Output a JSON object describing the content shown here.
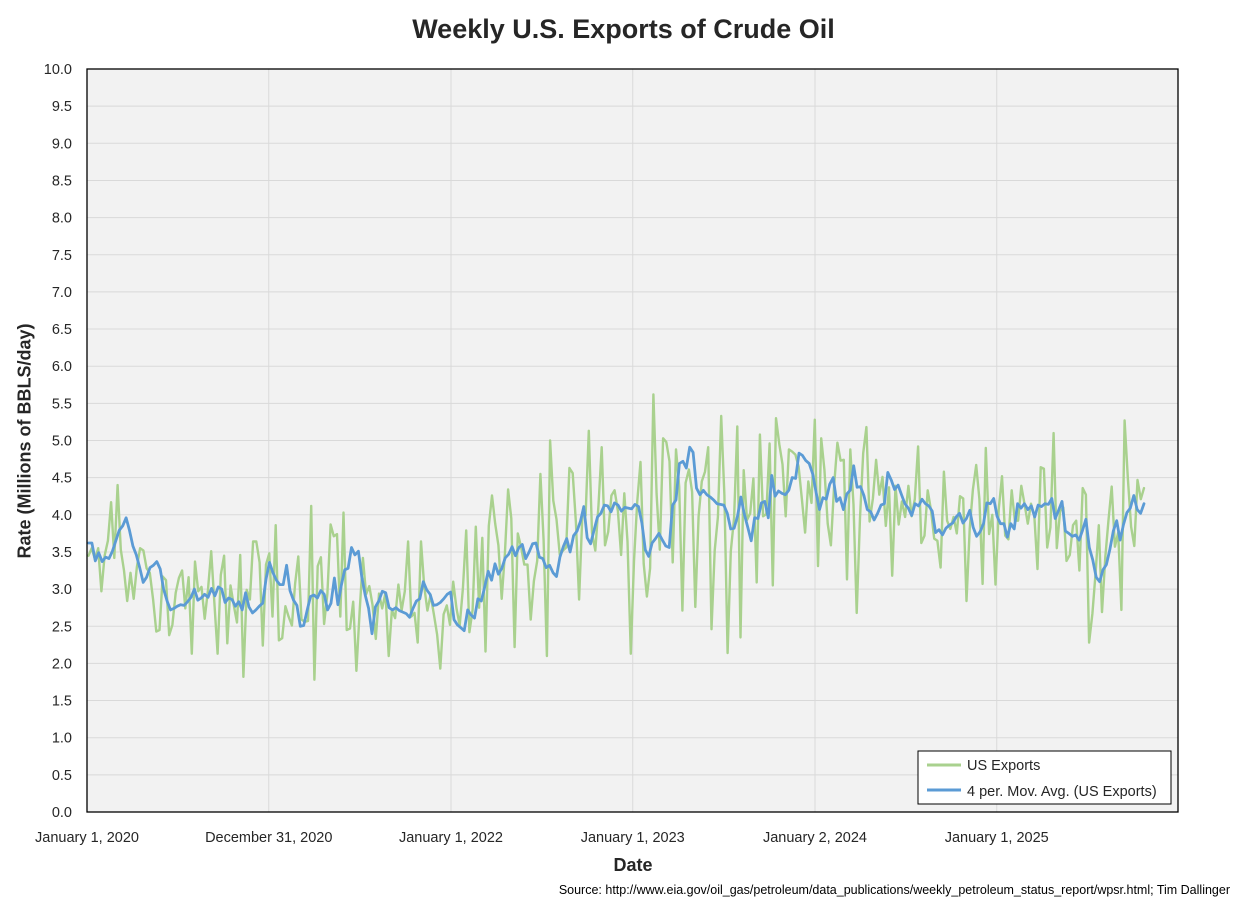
{
  "chart_data": {
    "type": "line",
    "title": "Weekly U.S. Exports of Crude Oil",
    "xlabel": "Date",
    "ylabel": "Rate (Millions of BBLS/day)",
    "source": "Source: http://www.eia.gov/oil_gas/petroleum/data_publications/weekly_petroleum_status_report/wpsr.html; Tim Dallinger",
    "ylim": [
      0,
      10
    ],
    "y_ticks": [
      "0.0",
      "0.5",
      "1.0",
      "1.5",
      "2.0",
      "2.5",
      "3.0",
      "3.5",
      "4.0",
      "4.5",
      "5.0",
      "5.5",
      "6.0",
      "6.5",
      "7.0",
      "7.5",
      "8.0",
      "8.5",
      "9.0",
      "9.5",
      "10.0"
    ],
    "x_ticks": [
      "January 1, 2020",
      "December 31, 2020",
      "January 1, 2022",
      "January 1, 2023",
      "January 2, 2024",
      "January 1, 2025"
    ],
    "x_start": "January 1, 2020",
    "x_end": "December 31, 2025",
    "grid": true,
    "legend_position": "bottom-right",
    "series": [
      {
        "name": "US Exports",
        "color": "#a9d18e",
        "values": [
          3.45,
          3.55,
          3.4,
          3.55,
          2.97,
          3.45,
          3.65,
          4.17,
          3.42,
          4.4,
          3.53,
          3.25,
          2.84,
          3.22,
          2.87,
          3.3,
          3.55,
          3.52,
          3.28,
          3.22,
          2.86,
          2.43,
          2.45,
          3.17,
          3.12,
          2.38,
          2.52,
          2.95,
          3.15,
          3.25,
          2.74,
          3.16,
          2.13,
          3.37,
          2.97,
          3.03,
          2.6,
          2.98,
          3.51,
          2.81,
          2.13,
          3.19,
          3.45,
          2.27,
          3.05,
          2.78,
          2.55,
          3.46,
          1.82,
          2.99,
          2.86,
          3.64,
          3.64,
          3.36,
          2.24,
          3.33,
          3.48,
          2.63,
          3.86,
          2.31,
          2.34,
          2.77,
          2.63,
          2.51,
          3.07,
          3.44,
          2.59,
          2.56,
          2.57,
          4.12,
          1.78,
          3.31,
          3.43,
          2.53,
          2.94,
          3.87,
          3.71,
          3.74,
          2.63,
          4.03,
          2.45,
          2.47,
          2.83,
          1.9,
          2.69,
          3.42,
          2.93,
          3.04,
          2.79,
          2.33,
          2.94,
          2.74,
          2.95,
          2.1,
          2.72,
          2.61,
          3.06,
          2.71,
          2.97,
          3.64,
          2.63,
          2.68,
          2.28,
          3.64,
          3.04,
          2.71,
          2.92,
          2.66,
          2.39,
          1.93,
          2.66,
          2.78,
          2.52,
          3.1,
          2.74,
          2.51,
          3.01,
          3.79,
          2.42,
          2.72,
          3.84,
          2.75,
          3.69,
          2.16,
          3.85,
          4.26,
          3.88,
          3.59,
          2.87,
          3.48,
          4.34,
          3.95,
          2.22,
          3.75,
          3.57,
          3.33,
          3.33,
          2.59,
          3.11,
          3.38,
          4.55,
          3.66,
          2.1,
          5.0,
          4.19,
          3.94,
          3.46,
          3.52,
          3.56,
          4.63,
          4.56,
          3.9,
          2.86,
          4.02,
          3.99,
          5.13,
          3.76,
          3.52,
          4.13,
          4.91,
          3.59,
          3.77,
          4.26,
          4.33,
          4.05,
          3.46,
          4.29,
          3.64,
          2.13,
          3.38,
          4.17,
          4.71,
          3.34,
          2.9,
          3.28,
          5.62,
          4.28,
          3.53,
          5.03,
          4.98,
          4.72,
          3.36,
          4.88,
          4.38,
          2.71,
          4.43,
          4.61,
          4.31,
          2.76,
          3.98,
          4.45,
          4.58,
          4.91,
          2.46,
          3.52,
          3.97,
          5.33,
          4.26,
          2.14,
          3.51,
          3.96,
          5.19,
          2.35,
          4.6,
          3.93,
          4.02,
          4.49,
          3.09,
          5.08,
          3.98,
          4.01,
          4.96,
          3.05,
          5.3,
          4.95,
          4.68,
          3.98,
          4.88,
          4.85,
          4.81,
          4.65,
          4.21,
          3.76,
          4.45,
          4.16,
          5.28,
          3.31,
          5.03,
          4.61,
          3.88,
          3.59,
          4.39,
          4.97,
          4.73,
          4.74,
          3.13,
          4.88,
          4.14,
          2.68,
          3.96,
          4.83,
          5.18,
          3.91,
          4.22,
          4.74,
          4.27,
          4.51,
          3.85,
          4.37,
          3.18,
          4.39,
          3.87,
          4.18,
          3.97,
          4.39,
          3.98,
          4.21,
          4.92,
          3.62,
          3.72,
          4.33,
          4.06,
          3.68,
          3.65,
          3.29,
          4.58,
          3.92,
          3.81,
          3.97,
          3.75,
          4.25,
          4.22,
          2.84,
          3.81,
          4.34,
          4.67,
          4.21,
          3.07,
          4.9,
          3.74,
          4.0,
          3.06,
          4.07,
          4.52,
          3.72,
          3.67,
          4.33,
          3.92,
          3.92,
          4.39,
          4.14,
          3.88,
          4.15,
          3.99,
          3.27,
          4.64,
          4.62,
          3.56,
          3.83,
          5.1,
          3.55,
          4.05,
          4.1,
          3.38,
          3.46,
          3.86,
          3.92,
          3.25,
          4.36,
          4.27,
          2.28,
          2.67,
          3.22,
          3.86,
          2.69,
          3.43,
          3.93,
          4.38,
          3.57,
          3.76,
          2.72,
          5.27,
          4.48,
          3.84,
          3.58,
          4.47,
          4.21,
          4.36
        ]
      },
      {
        "name": "4 per. Mov. Avg. (US Exports)",
        "color": "#5b9bd5",
        "values": [
          3.62,
          3.62,
          3.38,
          3.49,
          3.37,
          3.43,
          3.41,
          3.51,
          3.65,
          3.79,
          3.85,
          3.96,
          3.79,
          3.58,
          3.46,
          3.29,
          3.09,
          3.16,
          3.29,
          3.32,
          3.37,
          3.27,
          3.0,
          2.84,
          2.72,
          2.74,
          2.77,
          2.79,
          2.78,
          2.83,
          2.89,
          3.0,
          2.85,
          2.88,
          2.93,
          2.89,
          3.01,
          2.91,
          3.03,
          3.0,
          2.82,
          2.88,
          2.86,
          2.77,
          2.83,
          2.72,
          2.95,
          2.76,
          2.68,
          2.72,
          2.77,
          2.81,
          3.14,
          3.36,
          3.22,
          3.12,
          3.06,
          3.06,
          3.32,
          2.98,
          2.85,
          2.78,
          2.5,
          2.51,
          2.71,
          2.9,
          2.92,
          2.88,
          2.98,
          2.93,
          2.72,
          2.81,
          3.15,
          2.79,
          3.05,
          3.26,
          3.28,
          3.56,
          3.46,
          3.51,
          3.16,
          2.92,
          2.74,
          2.4,
          2.76,
          2.84,
          2.97,
          2.95,
          2.75,
          2.72,
          2.75,
          2.71,
          2.69,
          2.67,
          2.62,
          2.74,
          2.84,
          2.87,
          3.1,
          2.99,
          2.93,
          2.78,
          2.79,
          2.82,
          2.87,
          2.93,
          2.96,
          2.59,
          2.52,
          2.48,
          2.44,
          2.72,
          2.65,
          2.61,
          2.87,
          2.84,
          3.03,
          3.24,
          3.12,
          3.34,
          3.2,
          3.28,
          3.42,
          3.47,
          3.57,
          3.45,
          3.56,
          3.6,
          3.41,
          3.5,
          3.61,
          3.62,
          3.43,
          3.41,
          3.29,
          3.32,
          3.22,
          3.17,
          3.43,
          3.57,
          3.68,
          3.5,
          3.72,
          3.78,
          3.91,
          4.11,
          3.69,
          3.61,
          3.79,
          3.97,
          4.02,
          4.13,
          4.12,
          4.04,
          4.16,
          4.13,
          4.05,
          4.1,
          4.09,
          4.08,
          4.14,
          4.11,
          3.89,
          3.53,
          3.44,
          3.62,
          3.68,
          3.75,
          3.66,
          3.58,
          3.56,
          4.13,
          4.2,
          4.69,
          4.72,
          4.63,
          4.91,
          4.84,
          4.36,
          4.27,
          4.33,
          4.27,
          4.24,
          4.2,
          4.15,
          4.14,
          4.13,
          4.02,
          3.81,
          3.82,
          3.98,
          4.24,
          4.01,
          3.83,
          3.65,
          3.96,
          3.95,
          4.16,
          4.18,
          3.96,
          4.53,
          4.25,
          4.32,
          4.29,
          4.27,
          4.33,
          4.5,
          4.49,
          4.83,
          4.8,
          4.73,
          4.69,
          4.55,
          4.3,
          4.07,
          4.23,
          4.21,
          4.41,
          4.5,
          4.18,
          4.23,
          4.07,
          4.28,
          4.33,
          4.66,
          4.37,
          4.38,
          4.26,
          4.07,
          4.04,
          3.93,
          4.02,
          4.13,
          4.15,
          4.57,
          4.47,
          4.34,
          4.4,
          4.27,
          4.15,
          4.09,
          3.99,
          4.15,
          4.12,
          4.21,
          4.15,
          4.12,
          4.05,
          3.76,
          3.8,
          3.73,
          3.82,
          3.86,
          3.89,
          3.97,
          4.02,
          3.89,
          3.95,
          4.06,
          3.83,
          3.71,
          3.77,
          3.88,
          4.16,
          4.15,
          4.22,
          3.98,
          3.88,
          3.88,
          3.7,
          3.88,
          3.81,
          4.15,
          4.09,
          4.15,
          4.07,
          4.12,
          3.97,
          4.13,
          4.11,
          4.15,
          4.14,
          4.22,
          3.95,
          4.06,
          4.18,
          3.78,
          3.75,
          3.71,
          3.73,
          3.66,
          3.79,
          3.94,
          3.56,
          3.39,
          3.16,
          3.1,
          3.26,
          3.33,
          3.53,
          3.78,
          3.92,
          3.66,
          3.87,
          4.03,
          4.09,
          4.26,
          4.07,
          4.02,
          4.15
        ]
      }
    ]
  }
}
